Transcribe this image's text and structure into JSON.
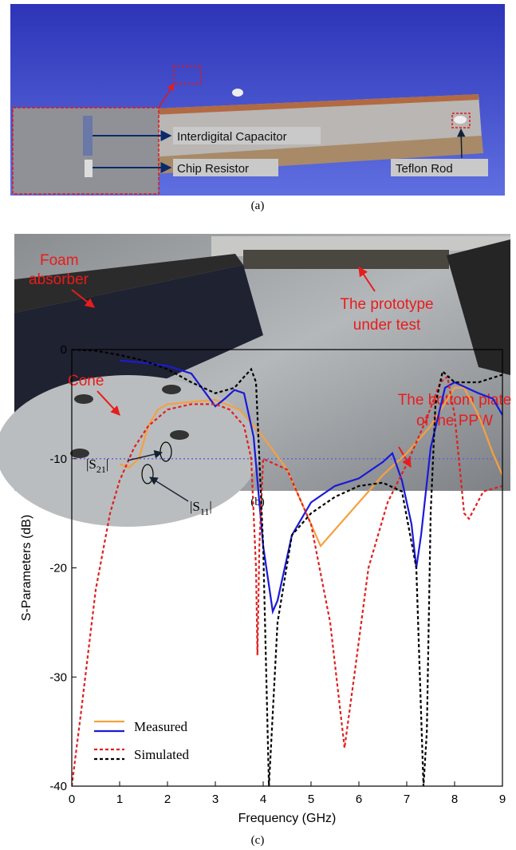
{
  "panel_a": {
    "caption": "(a)",
    "labels": [
      "Interdigital Capacitor",
      "Chip Resistor",
      "Teflon Rod"
    ]
  },
  "panel_b": {
    "caption": "(b)",
    "labels": [
      [
        "Foam",
        "absorber"
      ],
      [
        "The prototype",
        "under test"
      ],
      [
        "Cone"
      ],
      [
        "The bottom plate",
        "of the PPW"
      ]
    ]
  },
  "panel_c": {
    "caption": "(c)"
  },
  "chart_data": {
    "type": "line",
    "x_label": "Frequency (GHz)",
    "y_label": "S-Parameters (dB)",
    "xlim": [
      0,
      9
    ],
    "ylim": [
      -40,
      0
    ],
    "xticks": [
      0,
      1,
      2,
      3,
      4,
      5,
      6,
      7,
      8,
      9
    ],
    "yticks": [
      0,
      -10,
      -20,
      -30,
      -40
    ],
    "reference_line": -10,
    "reference_color": "#6464d8",
    "legend": "lower left",
    "annotations": [
      {
        "parts": [
          "|S",
          "21",
          "|"
        ]
      },
      {
        "parts": [
          "|S",
          "11",
          "|"
        ]
      }
    ],
    "series": [
      {
        "name": "Measured",
        "color": "#f5a040",
        "dash": false,
        "x": [
          1.0,
          1.2,
          1.4,
          1.6,
          1.8,
          2.0,
          2.5,
          3.0,
          3.5,
          4.0,
          4.5,
          5.0,
          5.2,
          5.5,
          6.0,
          6.5,
          7.0,
          7.5,
          8.0,
          8.2,
          8.5,
          8.8,
          9.0
        ],
        "values": [
          -10.5,
          -10.8,
          -10,
          -7,
          -5.5,
          -5,
          -4.8,
          -4.6,
          -5.5,
          -8,
          -11,
          -16,
          -18,
          -16.5,
          -14,
          -11.5,
          -9.5,
          -7,
          -3.5,
          -3.5,
          -6,
          -9.5,
          -11.5
        ]
      },
      {
        "color": "#1a1ad8",
        "dash": false,
        "x": [
          1.0,
          1.5,
          2.0,
          2.5,
          2.8,
          3.0,
          3.2,
          3.4,
          3.6,
          3.8,
          4.0,
          4.2,
          4.3,
          4.6,
          5.0,
          5.5,
          6.0,
          6.5,
          6.7,
          6.9,
          7.1,
          7.2,
          7.3,
          7.5,
          7.8,
          8.0,
          8.5,
          8.8,
          9.0
        ],
        "values": [
          -1,
          -1.2,
          -1.5,
          -2.2,
          -4,
          -5.2,
          -4.5,
          -3.7,
          -4,
          -8,
          -18,
          -24,
          -23,
          -17,
          -14,
          -12.5,
          -11.8,
          -10.3,
          -9.5,
          -12,
          -16,
          -20,
          -17,
          -9,
          -3.5,
          -3,
          -4,
          -4.5,
          -6
        ]
      },
      {
        "name": "Simulated",
        "color": "#e02020",
        "dash": true,
        "x": [
          0.0,
          0.2,
          0.5,
          0.8,
          1.0,
          1.3,
          1.6,
          2.0,
          2.5,
          3.0,
          3.3,
          3.6,
          3.75,
          3.85,
          3.88,
          3.92,
          4.0,
          4.5,
          5.0,
          5.4,
          5.7,
          5.9,
          6.2,
          6.6,
          7.0,
          7.4,
          7.7,
          7.85,
          8.0,
          8.2,
          8.3,
          8.6,
          9.0
        ],
        "values": [
          -40,
          -33,
          -22,
          -15,
          -12,
          -9,
          -7,
          -5.5,
          -5,
          -5,
          -5.5,
          -7,
          -10,
          -20,
          -28,
          -18,
          -10,
          -11,
          -16,
          -25,
          -36.5,
          -30,
          -20,
          -14,
          -10.5,
          -6.5,
          -3,
          -2.5,
          -6,
          -15,
          -15.5,
          -13,
          -12.5
        ]
      },
      {
        "color": "#000000",
        "dash": true,
        "x": [
          0.0,
          0.5,
          1.0,
          1.5,
          2.0,
          2.5,
          3.0,
          3.4,
          3.6,
          3.75,
          3.85,
          4.0,
          4.12,
          4.3,
          4.6,
          5.0,
          5.5,
          6.0,
          6.5,
          6.9,
          7.2,
          7.35,
          7.42,
          7.5,
          7.6,
          7.75,
          8.0,
          8.5,
          9.0
        ],
        "values": [
          0,
          -0.1,
          -0.5,
          -1,
          -1.8,
          -3,
          -4,
          -3.5,
          -2.5,
          -1.8,
          -3,
          -18,
          -40,
          -25,
          -17,
          -15,
          -13.5,
          -12.5,
          -12.2,
          -13,
          -20,
          -40,
          -35,
          -15,
          -5,
          -2,
          -3,
          -3,
          -2.3
        ]
      }
    ]
  }
}
